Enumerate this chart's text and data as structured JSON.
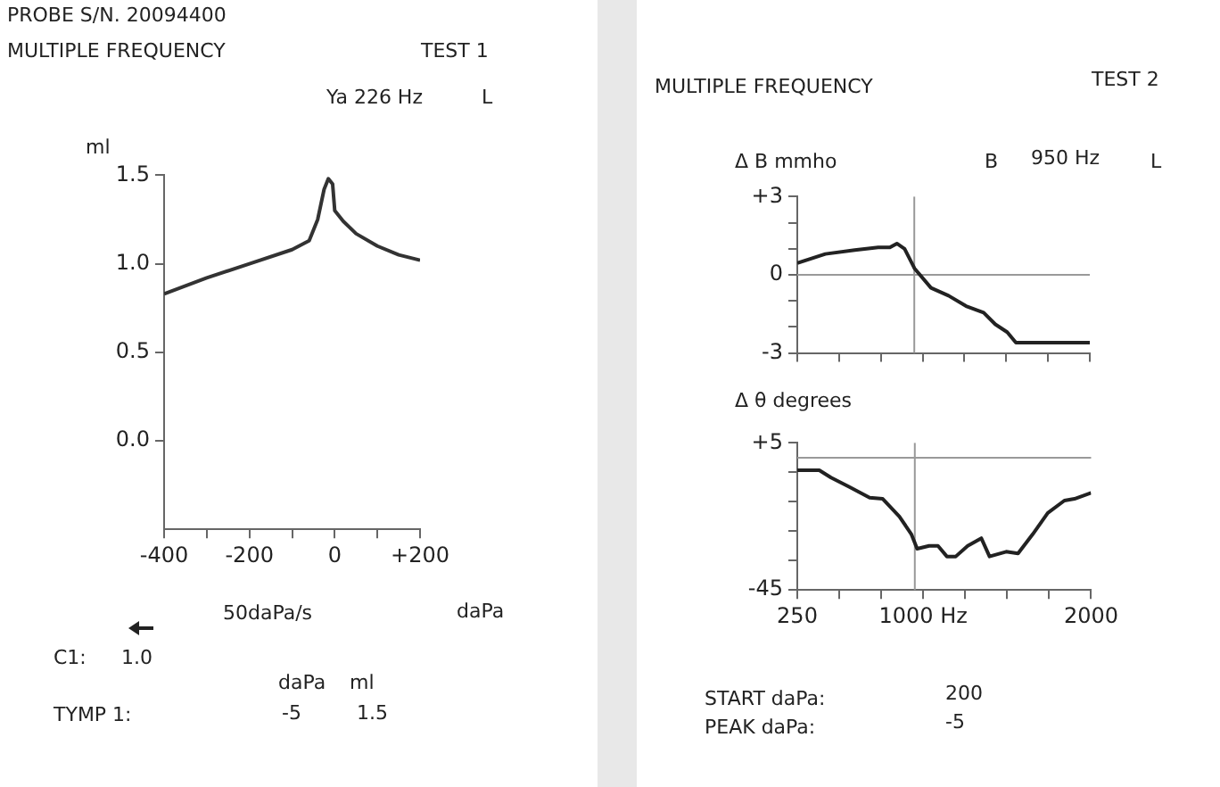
{
  "chart_data": [
    {
      "type": "line",
      "title": "MULTIPLE FREQUENCY",
      "xlabel": "daPa",
      "ylabel": "ml",
      "grid": false,
      "legend": false,
      "annotations": [
        "PROBE S/N. 20094400",
        "TEST 1",
        "Ya 226 Hz",
        "L",
        "50daPa/s",
        "C1:",
        "1.0",
        "daPa",
        "ml",
        "TYMP 1:",
        "-5",
        "1.5"
      ],
      "xlim": [
        -400,
        200
      ],
      "xticks": [
        -400,
        {
          "value": -300,
          "label": null
        },
        -200,
        {
          "value": -100,
          "label": null
        },
        0,
        {
          "value": 100,
          "label": null
        },
        {
          "value": 200,
          "label": "+200"
        }
      ],
      "ylim": [
        -0.5,
        1.5
      ],
      "yticks": [
        {
          "value": 0,
          "label": "0.0"
        },
        {
          "value": 0.5,
          "label": "0.5"
        },
        {
          "value": 1,
          "label": "1.0"
        },
        {
          "value": 1.5,
          "label": "1.5"
        }
      ],
      "x": [
        -400,
        -300,
        -200,
        -100,
        -60,
        -40,
        -25,
        -15,
        -5,
        0,
        20,
        50,
        100,
        150,
        200
      ],
      "series": [
        {
          "color": "#333333",
          "values": [
            0.83,
            0.92,
            1.0,
            1.08,
            1.13,
            1.25,
            1.42,
            1.48,
            1.45,
            1.3,
            1.24,
            1.17,
            1.1,
            1.05,
            1.02
          ]
        }
      ]
    },
    {
      "type": "line",
      "title": "MULTIPLE FREQUENCY",
      "ylabel": "Δ B mmho",
      "grid": false,
      "legend": false,
      "tick_labels": "y",
      "annotations": [
        "TEST 2",
        "B",
        "950 Hz",
        "L"
      ],
      "xlim": [
        250,
        2000
      ],
      "xticks": [
        250,
        500,
        750,
        1000,
        1250,
        1500,
        1750,
        2000
      ],
      "ylim": [
        -3,
        3
      ],
      "yticks": [
        -3,
        {
          "value": -2,
          "label": null
        },
        {
          "value": -1,
          "label": null
        },
        0,
        {
          "value": 1,
          "label": null
        },
        {
          "value": 2,
          "label": null
        },
        {
          "value": 3,
          "label": "+3"
        }
      ],
      "ref_lines": [
        {
          "axis": "y",
          "value": 0,
          "color": "#999999"
        },
        {
          "axis": "x",
          "value": 950,
          "color": "#999999"
        }
      ],
      "x": [
        250,
        418,
        594,
        734,
        804,
        846,
        892,
        951,
        1050,
        1155,
        1260,
        1365,
        1435,
        1506,
        1558,
        1716,
        2000
      ],
      "series": [
        {
          "color": "#222222",
          "values": [
            0.45,
            0.8,
            0.95,
            1.05,
            1.05,
            1.2,
            1.0,
            0.25,
            -0.5,
            -0.8,
            -1.2,
            -1.45,
            -1.9,
            -2.2,
            -2.6,
            -2.6,
            -2.6
          ]
        }
      ]
    },
    {
      "type": "line",
      "ylabel": "Δ θ degrees",
      "grid": false,
      "legend": false,
      "annotations": [
        "START daPa:",
        "200",
        "PEAK daPa:",
        "-5"
      ],
      "xlim": [
        250,
        2000
      ],
      "xticks": [
        250,
        {
          "value": 500,
          "label": null
        },
        {
          "value": 750,
          "label": null
        },
        {
          "value": 1000,
          "label": "1000 Hz"
        },
        {
          "value": 1250,
          "label": null
        },
        {
          "value": 1500,
          "label": null
        },
        {
          "value": 1750,
          "label": null
        },
        2000
      ],
      "ylim": [
        -45,
        5
      ],
      "yticks": [
        -45,
        {
          "value": -35,
          "label": null
        },
        {
          "value": -25,
          "label": null
        },
        {
          "value": -15,
          "label": null
        },
        {
          "value": -5,
          "label": null
        },
        {
          "value": 5,
          "label": "+5"
        }
      ],
      "ref_lines": [
        {
          "axis": "y",
          "value": 0,
          "color": "#999999"
        },
        {
          "axis": "x",
          "value": 950,
          "color": "#999999"
        }
      ],
      "x": [
        250,
        381,
        451,
        558,
        681,
        759,
        858,
        929,
        964,
        1035,
        1088,
        1141,
        1194,
        1265,
        1346,
        1395,
        1494,
        1565,
        1653,
        1742,
        1841,
        1901,
        2000
      ],
      "series": [
        {
          "color": "#222222",
          "values": [
            -4.3,
            -4.3,
            -6.8,
            -9.9,
            -13.6,
            -14,
            -20,
            -26,
            -31,
            -30,
            -30,
            -33.6,
            -33.6,
            -30,
            -27.4,
            -33.6,
            -32,
            -32.6,
            -26,
            -18.8,
            -14.6,
            -14,
            -12
          ]
        }
      ]
    }
  ]
}
